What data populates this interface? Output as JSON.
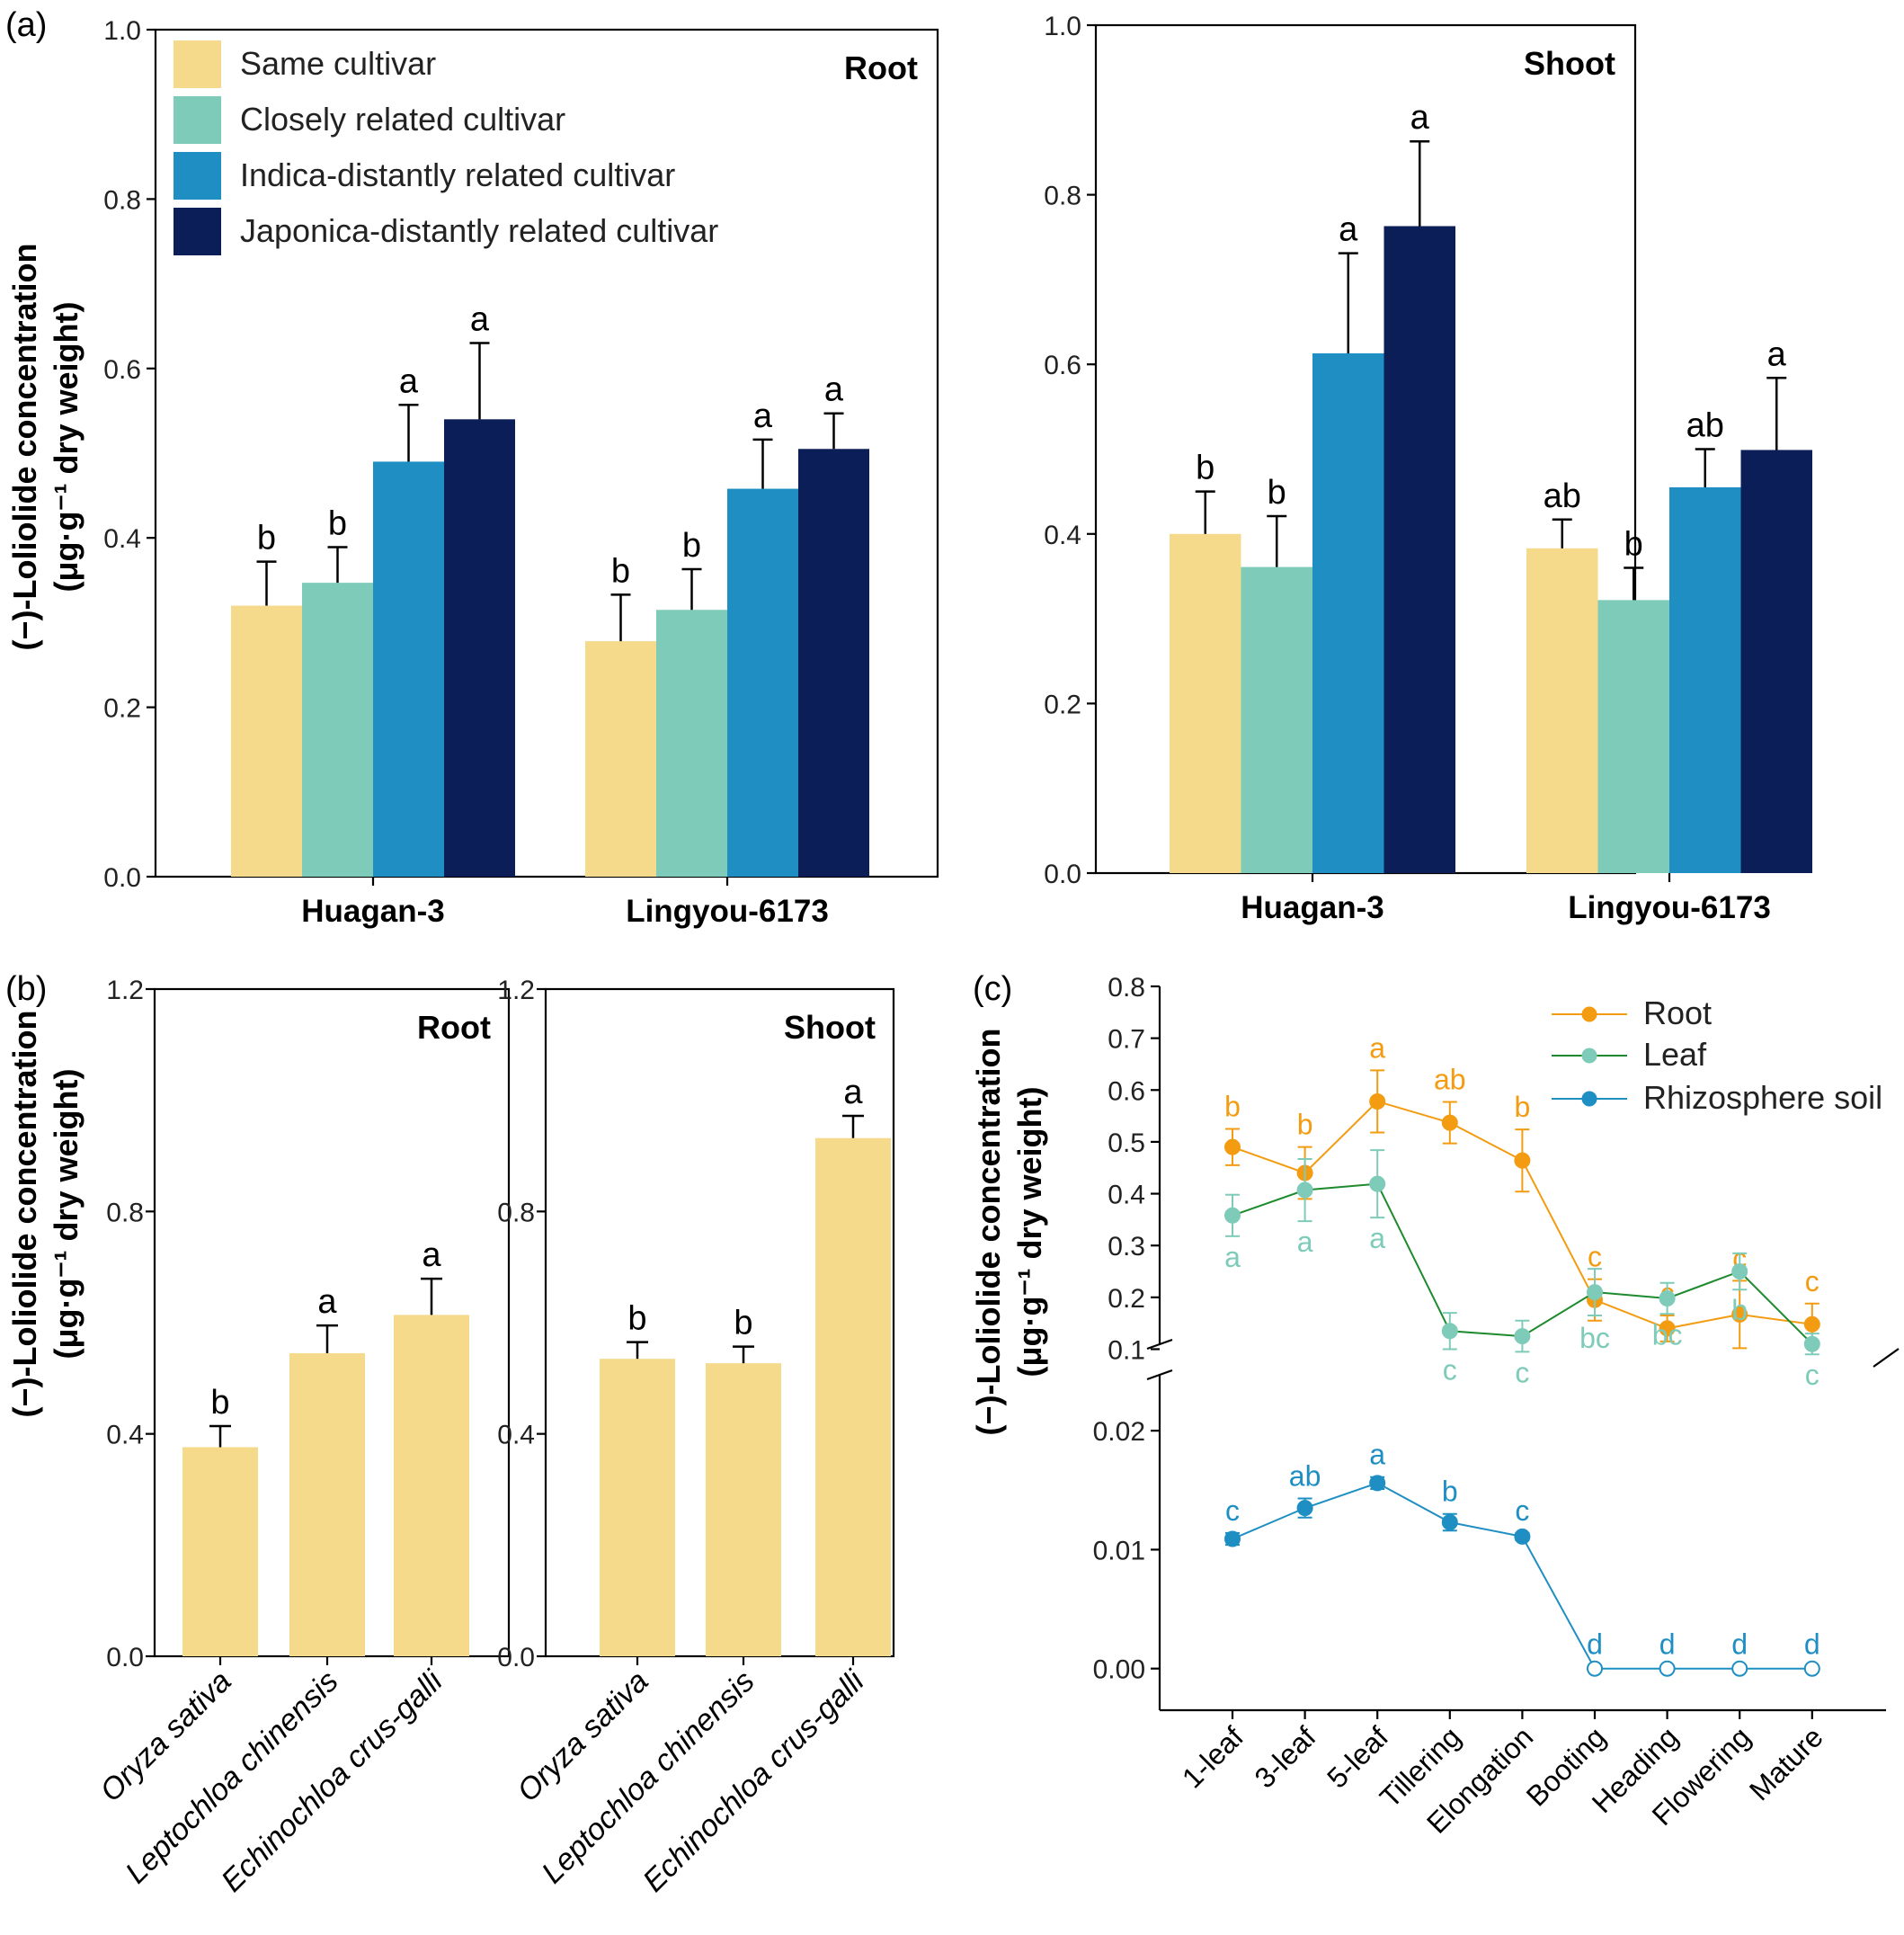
{
  "panel_labels": [
    "(a)",
    "(b)",
    "(c)"
  ],
  "ylabel_line1": "(−)-Loliolide concentration",
  "ylabel_line2": "(μg·g⁻¹ dry weight)",
  "colors": {
    "same": "#f5da8c",
    "close": "#7ecbb9",
    "indica": "#1f8fc3",
    "japonica": "#0b1e57",
    "root_line": "#f39c12",
    "leaf_marker": "#7ecbb9",
    "leaf_line": "#1e8a2e",
    "rhizo": "#1f8fc3"
  },
  "chart_data": [
    {
      "id": "a-root",
      "type": "bar",
      "title": "Root",
      "ylim": [
        0,
        1.0
      ],
      "yticks": [
        "0.0",
        "0.2",
        "0.4",
        "0.6",
        "0.8",
        "1.0"
      ],
      "categories": [
        "Huagan-3",
        "Lingyou-6173"
      ],
      "series": [
        {
          "name": "Same cultivar",
          "values": [
            0.32,
            0.278
          ],
          "errors": [
            0.052,
            0.055
          ],
          "sig": [
            "b",
            "b"
          ]
        },
        {
          "name": "Closely related cultivar",
          "values": [
            0.347,
            0.315
          ],
          "errors": [
            0.042,
            0.048
          ],
          "sig": [
            "b",
            "b"
          ]
        },
        {
          "name": "Indica-distantly related cultivar",
          "values": [
            0.49,
            0.458
          ],
          "errors": [
            0.067,
            0.058
          ],
          "sig": [
            "a",
            "a"
          ]
        },
        {
          "name": "Japonica-distantly related cultivar",
          "values": [
            0.54,
            0.505
          ],
          "errors": [
            0.09,
            0.042
          ],
          "sig": [
            "a",
            "a"
          ]
        }
      ]
    },
    {
      "id": "a-shoot",
      "type": "bar",
      "title": "Shoot",
      "ylim": [
        0,
        1.0
      ],
      "yticks": [
        "0.0",
        "0.2",
        "0.4",
        "0.6",
        "0.8",
        "1.0"
      ],
      "categories": [
        "Huagan-3",
        "Lingyou-6173"
      ],
      "series": [
        {
          "name": "Same cultivar",
          "values": [
            0.4,
            0.383
          ],
          "errors": [
            0.05,
            0.034
          ],
          "sig": [
            "b",
            "ab"
          ]
        },
        {
          "name": "Closely related cultivar",
          "values": [
            0.361,
            0.322
          ],
          "errors": [
            0.06,
            0.038
          ],
          "sig": [
            "b",
            "b"
          ]
        },
        {
          "name": "Indica-distantly related cultivar",
          "values": [
            0.613,
            0.455
          ],
          "errors": [
            0.118,
            0.045
          ],
          "sig": [
            "a",
            "ab"
          ]
        },
        {
          "name": "Japonica-distantly related cultivar",
          "values": [
            0.763,
            0.499
          ],
          "errors": [
            0.1,
            0.085
          ],
          "sig": [
            "a",
            "a"
          ]
        }
      ]
    },
    {
      "id": "b-root",
      "type": "bar",
      "title": "Root",
      "ylim": [
        0,
        1.2
      ],
      "yticks": [
        "0.0",
        "0.4",
        "0.8",
        "1.2"
      ],
      "categories": [
        "Oryza sativa",
        "Leptochloa chinensis",
        "Echinochloa crus-galli"
      ],
      "values": [
        0.376,
        0.545,
        0.614
      ],
      "errors": [
        0.038,
        0.05,
        0.065
      ],
      "sig": [
        "b",
        "a",
        "a"
      ]
    },
    {
      "id": "b-shoot",
      "type": "bar",
      "title": "Shoot",
      "ylim": [
        0,
        1.2
      ],
      "yticks": [
        "0.0",
        "0.4",
        "0.8",
        "1.2"
      ],
      "categories": [
        "Oryza sativa",
        "Leptochloa chinensis",
        "Echinochloa crus-galli"
      ],
      "values": [
        0.535,
        0.527,
        0.932
      ],
      "errors": [
        0.03,
        0.03,
        0.04
      ],
      "sig": [
        "b",
        "b",
        "a"
      ]
    },
    {
      "id": "c",
      "type": "line",
      "categories": [
        "1-leaf",
        "3-leaf",
        "5-leaf",
        "Tillering",
        "Elongation",
        "Booting",
        "Heading",
        "Flowering",
        "Mature"
      ],
      "upper_ylim": [
        0.08,
        0.8
      ],
      "upper_yticks": [
        "0.1",
        "0.2",
        "0.3",
        "0.4",
        "0.5",
        "0.6",
        "0.7",
        "0.8"
      ],
      "lower_ylim": [
        -0.0035,
        0.025
      ],
      "lower_yticks": [
        "0.00",
        "0.01",
        "0.02"
      ],
      "series": [
        {
          "name": "Root",
          "values": [
            0.49,
            0.44,
            0.578,
            0.537,
            0.464,
            0.195,
            0.14,
            0.167,
            0.148
          ],
          "errors": [
            0.035,
            0.05,
            0.06,
            0.04,
            0.06,
            0.04,
            0.025,
            0.065,
            0.04
          ],
          "sig": [
            "b",
            "b",
            "a",
            "ab",
            "b",
            "c",
            "c",
            "c",
            "c"
          ]
        },
        {
          "name": "Leaf",
          "values": [
            0.358,
            0.407,
            0.419,
            0.135,
            0.125,
            0.21,
            0.198,
            0.25,
            0.11
          ],
          "errors": [
            0.04,
            0.06,
            0.065,
            0.035,
            0.03,
            0.045,
            0.03,
            0.035,
            0.02
          ],
          "sig": [
            "a",
            "a",
            "a",
            "c",
            "c",
            "bc",
            "bc",
            "b",
            "c"
          ]
        },
        {
          "name": "Rhizosphere soil",
          "values": [
            0.0109,
            0.0135,
            0.0156,
            0.0123,
            0.0111,
            0,
            0,
            0,
            0
          ],
          "errors": [
            0.0005,
            0.0008,
            0.0005,
            0.0007,
            0.0003,
            0,
            0,
            0,
            0
          ],
          "sig": [
            "c",
            "ab",
            "a",
            "b",
            "c",
            "d",
            "d",
            "d",
            "d"
          ]
        }
      ]
    }
  ]
}
